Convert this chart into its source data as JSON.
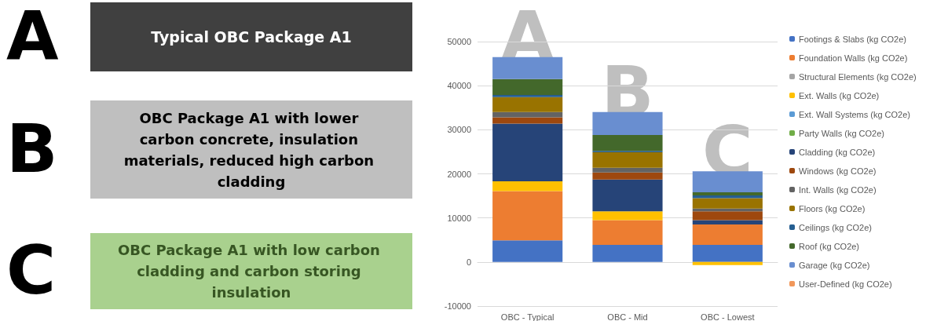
{
  "chart_data": {
    "type": "bar",
    "stacked": true,
    "categories": [
      "OBC - Typical",
      "OBC - Mid",
      "OBC - Lowest"
    ],
    "series": [
      {
        "name": "Footings & Slabs (kg CO2e)",
        "color": "#4472c4",
        "values": [
          4900,
          3900,
          3900
        ]
      },
      {
        "name": "Foundation Walls (kg CO2e)",
        "color": "#ed7d31",
        "values": [
          11200,
          5600,
          4600
        ]
      },
      {
        "name": "Structural Elements (kg CO2e)",
        "color": "#a5a5a5",
        "values": [
          0,
          0,
          0
        ]
      },
      {
        "name": "Ext. Walls (kg CO2e)",
        "color": "#ffc000",
        "values": [
          2200,
          2000,
          -700
        ]
      },
      {
        "name": "Ext. Wall Systems (kg CO2e)",
        "color": "#5b9bd5",
        "values": [
          0,
          0,
          0
        ]
      },
      {
        "name": "Party Walls (kg CO2e)",
        "color": "#70ad47",
        "values": [
          0,
          0,
          0
        ]
      },
      {
        "name": "Cladding (kg CO2e)",
        "color": "#264478",
        "values": [
          13100,
          7200,
          1000
        ]
      },
      {
        "name": "Windows (kg CO2e)",
        "color": "#9e480e",
        "values": [
          1400,
          1600,
          2000
        ]
      },
      {
        "name": "Int. Walls (kg CO2e)",
        "color": "#636363",
        "values": [
          1200,
          1100,
          600
        ]
      },
      {
        "name": "Floors (kg CO2e)",
        "color": "#997300",
        "values": [
          3400,
          3500,
          2400
        ]
      },
      {
        "name": "Ceilings (kg CO2e)",
        "color": "#255e91",
        "values": [
          500,
          300,
          600
        ]
      },
      {
        "name": "Roof (kg CO2e)",
        "color": "#43682b",
        "values": [
          3600,
          3600,
          700
        ]
      },
      {
        "name": "Garage (kg CO2e)",
        "color": "#698ed0",
        "values": [
          5000,
          5200,
          4800
        ]
      },
      {
        "name": "User-Defined (kg CO2e)",
        "color": "#f1975a",
        "values": [
          0,
          0,
          0
        ]
      }
    ],
    "ylim": [
      -10000,
      50000
    ],
    "yticks": [
      -10000,
      0,
      10000,
      20000,
      30000,
      40000,
      50000
    ],
    "grid": "y",
    "legend": "right",
    "annotations": [
      "A",
      "Typical OBC Package A1",
      "B",
      "OBC Package A1 with lower carbon concrete, insulation materials, reduced high carbon cladding",
      "C",
      "OBC Package A1 with low carbon cladding and carbon storing insulation",
      "A",
      "B",
      "C"
    ]
  }
}
